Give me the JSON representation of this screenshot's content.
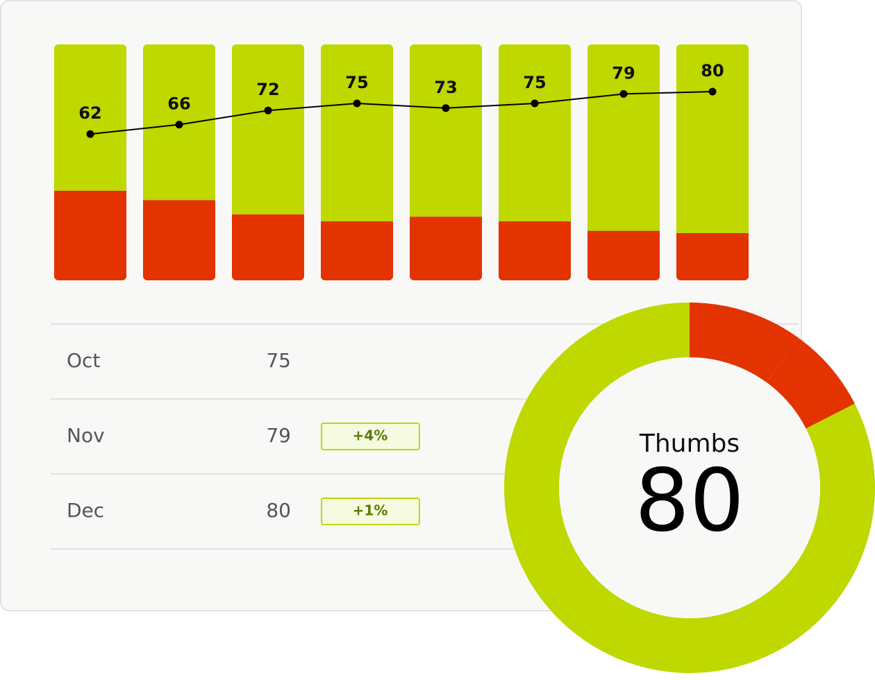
{
  "chart_data": {
    "type": "bar",
    "stacked": true,
    "categories": [
      null,
      null,
      null,
      null,
      null,
      null,
      null,
      null
    ],
    "series": [
      {
        "color": "#e33300",
        "values": [
          38,
          34,
          28,
          25,
          27,
          25,
          21,
          20
        ]
      },
      {
        "color": "#bed800",
        "values": [
          62,
          66,
          72,
          75,
          73,
          75,
          79,
          80
        ]
      }
    ],
    "line_color": "#000000",
    "ylim": [
      0,
      100
    ]
  },
  "table": {
    "rows": [
      {
        "month": "Oct",
        "value": 75
      },
      {
        "month": "Nov",
        "value": 79,
        "change": "+4%"
      },
      {
        "month": "Dec",
        "value": 80,
        "change": "+1%"
      }
    ]
  },
  "donut": {
    "title": "Thumbs",
    "value": 80,
    "segments": [
      {
        "color": "#e33300",
        "value": 10
      },
      {
        "color": "#e33300",
        "value": 7.5
      },
      {
        "color": "#bed800",
        "value": 82.5
      }
    ]
  }
}
